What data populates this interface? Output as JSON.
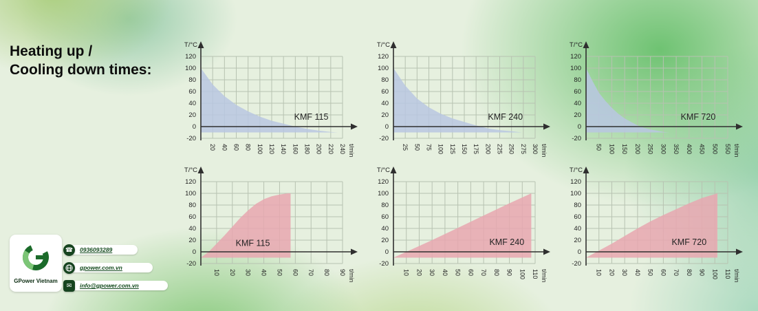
{
  "title": {
    "line1": "Heating up /",
    "line2": "Cooling down times:"
  },
  "colors": {
    "cooling_fill": "#b9c7e2",
    "heating_fill": "#e8a7b0",
    "grid": "#b7c2b1",
    "axis": "#2f2f2f",
    "accent_green": "#68c06c"
  },
  "chart_data": [
    {
      "id": "kmf115-cooling",
      "type": "area",
      "mode": "cooling",
      "model_label": "KMF 115",
      "xlabel": "t/min",
      "ylabel": "T/°C",
      "x_ticks": [
        20,
        40,
        60,
        80,
        100,
        120,
        140,
        160,
        180,
        200,
        220,
        240
      ],
      "y_ticks": [
        120,
        100,
        80,
        60,
        40,
        20,
        0,
        -20
      ],
      "ylim": [
        -20,
        120
      ],
      "baseline": -10,
      "fill_color": "#b9c7e2",
      "points": [
        [
          0,
          100
        ],
        [
          20,
          72
        ],
        [
          40,
          52
        ],
        [
          60,
          37
        ],
        [
          80,
          26
        ],
        [
          100,
          17
        ],
        [
          120,
          10
        ],
        [
          140,
          5
        ],
        [
          160,
          0
        ],
        [
          180,
          -4
        ],
        [
          200,
          -7
        ],
        [
          220,
          -9
        ],
        [
          232,
          -10
        ]
      ],
      "label_pos": [
        187,
        12
      ]
    },
    {
      "id": "kmf240-cooling",
      "type": "area",
      "mode": "cooling",
      "model_label": "KMF 240",
      "xlabel": "t/min",
      "ylabel": "T/°C",
      "x_ticks": [
        25,
        50,
        75,
        100,
        125,
        150,
        175,
        200,
        225,
        250,
        275,
        300
      ],
      "y_ticks": [
        120,
        100,
        80,
        60,
        40,
        20,
        0,
        -20
      ],
      "ylim": [
        -20,
        120
      ],
      "baseline": -10,
      "fill_color": "#b9c7e2",
      "points": [
        [
          0,
          100
        ],
        [
          25,
          70
        ],
        [
          50,
          48
        ],
        [
          75,
          33
        ],
        [
          100,
          22
        ],
        [
          125,
          14
        ],
        [
          150,
          8
        ],
        [
          175,
          2
        ],
        [
          200,
          -3
        ],
        [
          225,
          -6
        ],
        [
          250,
          -8
        ],
        [
          272,
          -10
        ]
      ],
      "label_pos": [
        237,
        12
      ]
    },
    {
      "id": "kmf720-cooling",
      "type": "area",
      "mode": "cooling",
      "model_label": "KMF 720",
      "xlabel": "t/min",
      "ylabel": "T/°C",
      "x_ticks": [
        50,
        100,
        150,
        200,
        250,
        300,
        350,
        400,
        450,
        500,
        550
      ],
      "y_ticks": [
        120,
        100,
        80,
        60,
        40,
        20,
        0,
        -20
      ],
      "ylim": [
        -20,
        120
      ],
      "baseline": -10,
      "fill_color": "#b9c7e2",
      "points": [
        [
          0,
          100
        ],
        [
          25,
          78
        ],
        [
          50,
          58
        ],
        [
          75,
          44
        ],
        [
          100,
          32
        ],
        [
          125,
          22
        ],
        [
          150,
          14
        ],
        [
          175,
          8
        ],
        [
          200,
          2
        ],
        [
          225,
          -2
        ],
        [
          250,
          -5
        ],
        [
          275,
          -7
        ],
        [
          300,
          -9
        ],
        [
          322,
          -10
        ]
      ],
      "label_pos": [
        435,
        12
      ]
    },
    {
      "id": "kmf115-heating",
      "type": "area",
      "mode": "heating",
      "model_label": "KMF 115",
      "xlabel": "t/min",
      "ylabel": "T/°C",
      "x_ticks": [
        10,
        20,
        30,
        40,
        50,
        60,
        70,
        80,
        90
      ],
      "y_ticks": [
        120,
        100,
        80,
        60,
        40,
        20,
        0,
        -20
      ],
      "ylim": [
        -20,
        120
      ],
      "baseline": -10,
      "fill_color": "#e8a7b0",
      "points": [
        [
          0,
          -10
        ],
        [
          5,
          0
        ],
        [
          10,
          14
        ],
        [
          15,
          28
        ],
        [
          20,
          43
        ],
        [
          25,
          58
        ],
        [
          30,
          71
        ],
        [
          35,
          82
        ],
        [
          40,
          90
        ],
        [
          45,
          95
        ],
        [
          50,
          98
        ],
        [
          55,
          100
        ],
        [
          57,
          100
        ]
      ],
      "label_pos": [
        33,
        10
      ]
    },
    {
      "id": "kmf240-heating",
      "type": "area",
      "mode": "heating",
      "model_label": "KMF 240",
      "xlabel": "t/min",
      "ylabel": "T/°C",
      "x_ticks": [
        10,
        20,
        30,
        40,
        50,
        60,
        70,
        80,
        90,
        100,
        110
      ],
      "y_ticks": [
        120,
        100,
        80,
        60,
        40,
        20,
        0,
        -20
      ],
      "ylim": [
        -20,
        120
      ],
      "baseline": -10,
      "fill_color": "#e8a7b0",
      "points": [
        [
          0,
          -10
        ],
        [
          10,
          0
        ],
        [
          30,
          20
        ],
        [
          50,
          41
        ],
        [
          70,
          62
        ],
        [
          90,
          83
        ],
        [
          107,
          100
        ]
      ],
      "label_pos": [
        88,
        12
      ]
    },
    {
      "id": "kmf720-heating",
      "type": "area",
      "mode": "heating",
      "model_label": "KMF 720",
      "xlabel": "t/min",
      "ylabel": "T/°C",
      "x_ticks": [
        10,
        20,
        30,
        40,
        50,
        60,
        70,
        80,
        90,
        100,
        110
      ],
      "y_ticks": [
        120,
        100,
        80,
        60,
        40,
        20,
        0,
        -20
      ],
      "ylim": [
        -20,
        120
      ],
      "baseline": -10,
      "fill_color": "#e8a7b0",
      "points": [
        [
          0,
          -10
        ],
        [
          10,
          2
        ],
        [
          20,
          14
        ],
        [
          30,
          27
        ],
        [
          40,
          40
        ],
        [
          50,
          52
        ],
        [
          60,
          63
        ],
        [
          70,
          73
        ],
        [
          80,
          83
        ],
        [
          90,
          92
        ],
        [
          102,
          100
        ]
      ],
      "label_pos": [
        80,
        12
      ]
    }
  ],
  "brand": {
    "name": "GPower Vietnam",
    "logo_letter": "G",
    "contacts": [
      {
        "icon": "phone-icon",
        "value": "0936093289"
      },
      {
        "icon": "globe-icon",
        "value": "gpower.com.vn"
      },
      {
        "icon": "email-icon",
        "value": "info@gpower.com.vn"
      }
    ]
  }
}
